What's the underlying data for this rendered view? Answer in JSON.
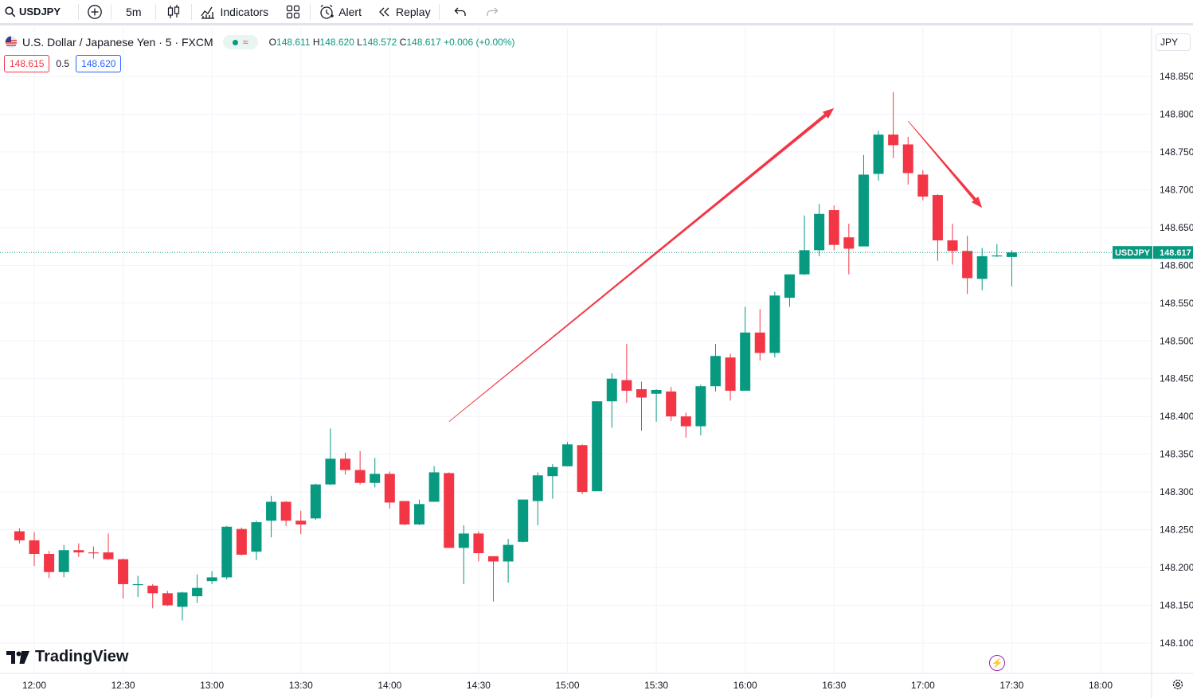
{
  "toolbar": {
    "symbol": "USDJPY",
    "interval": "5m",
    "indicators_label": "Indicators",
    "alert_label": "Alert",
    "replay_label": "Replay"
  },
  "legend": {
    "title": "U.S. Dollar / Japanese Yen · 5 · FXCM",
    "o_label": "O",
    "o_value": "148.611",
    "h_label": "H",
    "h_value": "148.620",
    "l_label": "L",
    "l_value": "148.572",
    "c_label": "C",
    "c_value": "148.617",
    "change": "+0.006 (+0.00%)"
  },
  "quotes": {
    "sell": "148.615",
    "spread": "0.5",
    "buy": "148.620"
  },
  "currency": "JPY",
  "watermark": "TradingView",
  "price_label": {
    "symbol": "USDJPY",
    "price": "148.617"
  },
  "colors": {
    "up": "#089981",
    "down": "#f23645",
    "arrow": "#f23645",
    "grid": "#f0f3fa"
  },
  "chart_data": {
    "type": "candlestick",
    "x_tick_labels": [
      "12:00",
      "12:30",
      "13:00",
      "13:30",
      "14:00",
      "14:30",
      "15:00",
      "15:30",
      "16:00",
      "16:30",
      "17:00",
      "17:30",
      "18:00"
    ],
    "y_tick_labels": [
      "148.850",
      "148.800",
      "148.750",
      "148.700",
      "148.650",
      "148.600",
      "148.550",
      "148.500",
      "148.450",
      "148.400",
      "148.350",
      "148.300",
      "148.250",
      "148.200",
      "148.150",
      "148.100"
    ],
    "ylim": [
      148.075,
      148.895
    ],
    "grid": true,
    "last_price": 148.617,
    "candles": [
      {
        "t": "11:55",
        "o": 148.248,
        "h": 148.252,
        "l": 148.232,
        "c": 148.236
      },
      {
        "t": "12:00",
        "o": 148.236,
        "h": 148.247,
        "l": 148.202,
        "c": 148.218
      },
      {
        "t": "12:05",
        "o": 148.218,
        "h": 148.222,
        "l": 148.186,
        "c": 148.194
      },
      {
        "t": "12:10",
        "o": 148.194,
        "h": 148.23,
        "l": 148.187,
        "c": 148.223
      },
      {
        "t": "12:15",
        "o": 148.223,
        "h": 148.232,
        "l": 148.214,
        "c": 148.22
      },
      {
        "t": "12:20",
        "o": 148.22,
        "h": 148.228,
        "l": 148.212,
        "c": 148.219
      },
      {
        "t": "12:25",
        "o": 148.22,
        "h": 148.245,
        "l": 148.21,
        "c": 148.211
      },
      {
        "t": "12:30",
        "o": 148.211,
        "h": 148.212,
        "l": 148.159,
        "c": 148.178
      },
      {
        "t": "12:35",
        "o": 148.178,
        "h": 148.189,
        "l": 148.161,
        "c": 148.178
      },
      {
        "t": "12:40",
        "o": 148.176,
        "h": 148.178,
        "l": 148.146,
        "c": 148.166
      },
      {
        "t": "12:45",
        "o": 148.166,
        "h": 148.169,
        "l": 148.149,
        "c": 148.15
      },
      {
        "t": "12:50",
        "o": 148.148,
        "h": 148.168,
        "l": 148.13,
        "c": 148.167
      },
      {
        "t": "12:55",
        "o": 148.162,
        "h": 148.191,
        "l": 148.153,
        "c": 148.173
      },
      {
        "t": "13:00",
        "o": 148.182,
        "h": 148.195,
        "l": 148.178,
        "c": 148.187
      },
      {
        "t": "13:05",
        "o": 148.187,
        "h": 148.255,
        "l": 148.184,
        "c": 148.254
      },
      {
        "t": "13:10",
        "o": 148.251,
        "h": 148.253,
        "l": 148.216,
        "c": 148.217
      },
      {
        "t": "13:15",
        "o": 148.221,
        "h": 148.262,
        "l": 148.21,
        "c": 148.26
      },
      {
        "t": "13:20",
        "o": 148.262,
        "h": 148.295,
        "l": 148.24,
        "c": 148.287
      },
      {
        "t": "13:25",
        "o": 148.287,
        "h": 148.288,
        "l": 148.255,
        "c": 148.262
      },
      {
        "t": "13:30",
        "o": 148.262,
        "h": 148.275,
        "l": 148.244,
        "c": 148.257
      },
      {
        "t": "13:35",
        "o": 148.265,
        "h": 148.311,
        "l": 148.263,
        "c": 148.31
      },
      {
        "t": "13:40",
        "o": 148.31,
        "h": 148.384,
        "l": 148.309,
        "c": 148.344
      },
      {
        "t": "13:45",
        "o": 148.344,
        "h": 148.352,
        "l": 148.323,
        "c": 148.329
      },
      {
        "t": "13:50",
        "o": 148.329,
        "h": 148.354,
        "l": 148.31,
        "c": 148.312
      },
      {
        "t": "13:55",
        "o": 148.312,
        "h": 148.345,
        "l": 148.306,
        "c": 148.324
      },
      {
        "t": "14:00",
        "o": 148.324,
        "h": 148.327,
        "l": 148.278,
        "c": 148.286
      },
      {
        "t": "14:05",
        "o": 148.288,
        "h": 148.288,
        "l": 148.256,
        "c": 148.257
      },
      {
        "t": "14:10",
        "o": 148.257,
        "h": 148.29,
        "l": 148.256,
        "c": 148.284
      },
      {
        "t": "14:15",
        "o": 148.287,
        "h": 148.334,
        "l": 148.287,
        "c": 148.326
      },
      {
        "t": "14:20",
        "o": 148.325,
        "h": 148.326,
        "l": 148.226,
        "c": 148.226
      },
      {
        "t": "14:25",
        "o": 148.226,
        "h": 148.256,
        "l": 148.178,
        "c": 148.245
      },
      {
        "t": "14:30",
        "o": 148.245,
        "h": 148.248,
        "l": 148.208,
        "c": 148.219
      },
      {
        "t": "14:35",
        "o": 148.215,
        "h": 148.215,
        "l": 148.155,
        "c": 148.208
      },
      {
        "t": "14:40",
        "o": 148.208,
        "h": 148.238,
        "l": 148.18,
        "c": 148.23
      },
      {
        "t": "14:45",
        "o": 148.234,
        "h": 148.29,
        "l": 148.233,
        "c": 148.29
      },
      {
        "t": "14:50",
        "o": 148.288,
        "h": 148.326,
        "l": 148.256,
        "c": 148.322
      },
      {
        "t": "14:55",
        "o": 148.321,
        "h": 148.337,
        "l": 148.291,
        "c": 148.333
      },
      {
        "t": "15:00",
        "o": 148.334,
        "h": 148.366,
        "l": 148.334,
        "c": 148.363
      },
      {
        "t": "15:05",
        "o": 148.362,
        "h": 148.363,
        "l": 148.297,
        "c": 148.3
      },
      {
        "t": "15:10",
        "o": 148.301,
        "h": 148.42,
        "l": 148.301,
        "c": 148.42
      },
      {
        "t": "15:15",
        "o": 148.42,
        "h": 148.457,
        "l": 148.385,
        "c": 148.45
      },
      {
        "t": "15:20",
        "o": 148.448,
        "h": 148.496,
        "l": 148.418,
        "c": 148.434
      },
      {
        "t": "15:25",
        "o": 148.436,
        "h": 148.446,
        "l": 148.381,
        "c": 148.425
      },
      {
        "t": "15:30",
        "o": 148.43,
        "h": 148.436,
        "l": 148.393,
        "c": 148.435
      },
      {
        "t": "15:35",
        "o": 148.433,
        "h": 148.439,
        "l": 148.394,
        "c": 148.4
      },
      {
        "t": "15:40",
        "o": 148.4,
        "h": 148.405,
        "l": 148.372,
        "c": 148.387
      },
      {
        "t": "15:45",
        "o": 148.387,
        "h": 148.442,
        "l": 148.375,
        "c": 148.44
      },
      {
        "t": "15:50",
        "o": 148.44,
        "h": 148.496,
        "l": 148.433,
        "c": 148.48
      },
      {
        "t": "15:55",
        "o": 148.478,
        "h": 148.483,
        "l": 148.421,
        "c": 148.434
      },
      {
        "t": "16:00",
        "o": 148.434,
        "h": 148.545,
        "l": 148.434,
        "c": 148.511
      },
      {
        "t": "16:05",
        "o": 148.511,
        "h": 148.542,
        "l": 148.474,
        "c": 148.484
      },
      {
        "t": "16:10",
        "o": 148.484,
        "h": 148.565,
        "l": 148.478,
        "c": 148.56
      },
      {
        "t": "16:15",
        "o": 148.557,
        "h": 148.588,
        "l": 148.545,
        "c": 148.588
      },
      {
        "t": "16:20",
        "o": 148.588,
        "h": 148.666,
        "l": 148.587,
        "c": 148.62
      },
      {
        "t": "16:25",
        "o": 148.62,
        "h": 148.681,
        "l": 148.612,
        "c": 148.668
      },
      {
        "t": "16:30",
        "o": 148.673,
        "h": 148.679,
        "l": 148.62,
        "c": 148.627
      },
      {
        "t": "16:35",
        "o": 148.637,
        "h": 148.655,
        "l": 148.588,
        "c": 148.622
      },
      {
        "t": "16:40",
        "o": 148.625,
        "h": 148.746,
        "l": 148.625,
        "c": 148.72
      },
      {
        "t": "16:45",
        "o": 148.721,
        "h": 148.778,
        "l": 148.712,
        "c": 148.773
      },
      {
        "t": "16:50",
        "o": 148.773,
        "h": 148.829,
        "l": 148.742,
        "c": 148.759
      },
      {
        "t": "16:55",
        "o": 148.76,
        "h": 148.77,
        "l": 148.707,
        "c": 148.722
      },
      {
        "t": "17:00",
        "o": 148.72,
        "h": 148.726,
        "l": 148.686,
        "c": 148.691
      },
      {
        "t": "17:05",
        "o": 148.693,
        "h": 148.694,
        "l": 148.606,
        "c": 148.633
      },
      {
        "t": "17:10",
        "o": 148.633,
        "h": 148.655,
        "l": 148.601,
        "c": 148.619
      },
      {
        "t": "17:15",
        "o": 148.619,
        "h": 148.639,
        "l": 148.562,
        "c": 148.583
      },
      {
        "t": "17:20",
        "o": 148.582,
        "h": 148.623,
        "l": 148.567,
        "c": 148.612
      },
      {
        "t": "17:25",
        "o": 148.612,
        "h": 148.628,
        "l": 148.611,
        "c": 148.613
      },
      {
        "t": "17:30",
        "o": 148.611,
        "h": 148.62,
        "l": 148.572,
        "c": 148.617
      }
    ],
    "annotations": [
      {
        "type": "arrow",
        "from": {
          "t": "14:20",
          "y": 148.393
        },
        "to": {
          "t": "16:30",
          "y": 148.808
        }
      },
      {
        "type": "arrow",
        "from": {
          "t": "16:55",
          "y": 148.791
        },
        "to": {
          "t": "17:20",
          "y": 148.676
        }
      }
    ]
  }
}
